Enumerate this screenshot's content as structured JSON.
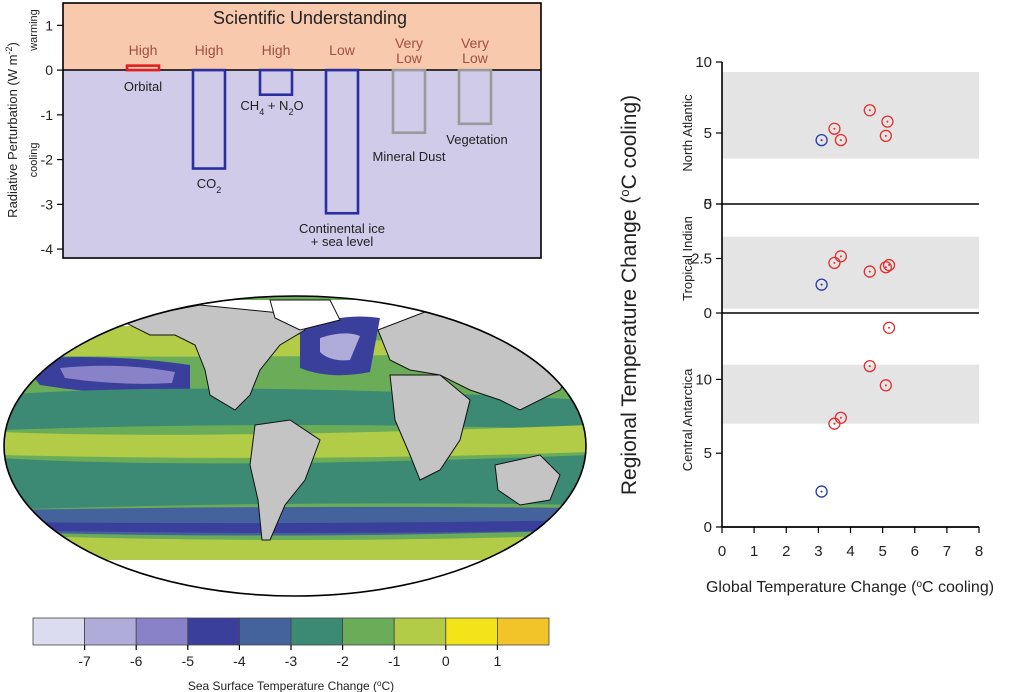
{
  "colors": {
    "warming_bg": "#f9c9ae",
    "cooling_bg": "#cfcbe8",
    "blue_bar": "#2b2f9e",
    "gray_bar": "#9a9a9a",
    "red_bar": "#e02020",
    "band_gray": "#e4e4e4",
    "point_red": "#e03030",
    "point_blue": "#2a3aa0",
    "land": "#c4c4c4"
  },
  "forcing": {
    "header": "Scientific Understanding",
    "ylabel_main": "Radiative Perturbation (W m",
    "ylabel_sup": "-2",
    "ylabel_end": ")",
    "warming_label": "warming",
    "cooling_label": "cooling"
  },
  "sst_map": {
    "colorbar_title": "Sea Surface Temperature Change (",
    "colorbar_title_sup": "o",
    "colorbar_title_end": "C)",
    "colorbar_ticks": [
      "-7",
      "-6",
      "-5",
      "-4",
      "-3",
      "-2",
      "-1",
      "0",
      "1"
    ],
    "colorbar_colors": [
      "#dcdcf0",
      "#b0acda",
      "#8a82c8",
      "#3a3f9c",
      "#44639c",
      "#3c8a74",
      "#6aac58",
      "#b2cc48",
      "#f2e418",
      "#f2c42a"
    ]
  },
  "scatter": {
    "xlabel": "Global Temperature Change (",
    "xlabel_sup": "o",
    "xlabel_end": "C cooling)",
    "ylabel": "Regional Temperature Change (",
    "ylabel_sup": "o",
    "ylabel_end": "C cooling)"
  },
  "chart_data": [
    {
      "type": "bar",
      "ylim": [
        -4.2,
        1.5
      ],
      "yticks": [
        -4,
        -3,
        -2,
        -1,
        0,
        1
      ],
      "bars": [
        {
          "label": "Orbital",
          "value": 0.1,
          "understanding": "High",
          "color": "red"
        },
        {
          "label": "CO2",
          "value": -2.2,
          "understanding": "High",
          "color": "blue"
        },
        {
          "label": "CH4 + N2O",
          "value": -0.55,
          "understanding": "High",
          "color": "blue"
        },
        {
          "label": "Continental ice + sea level",
          "value": -3.2,
          "understanding": "Low",
          "color": "blue"
        },
        {
          "label": "Mineral Dust",
          "value": -1.4,
          "understanding": "Very Low",
          "color": "gray"
        },
        {
          "label": "Vegetation",
          "value": -1.2,
          "understanding": "Very Low",
          "color": "gray"
        }
      ]
    },
    {
      "type": "scatter",
      "xlim": [
        0,
        8
      ],
      "xticks": [
        0,
        1,
        2,
        3,
        4,
        5,
        6,
        7,
        8
      ],
      "panels": [
        {
          "name": "North Atlantic",
          "ylim": [
            0,
            10
          ],
          "yticks": [
            0,
            5,
            10
          ],
          "band": [
            3.2,
            9.3
          ],
          "points": [
            {
              "x": 3.1,
              "y": 4.5,
              "color": "blue"
            },
            {
              "x": 3.5,
              "y": 5.3,
              "color": "red"
            },
            {
              "x": 3.7,
              "y": 4.5,
              "color": "red"
            },
            {
              "x": 4.6,
              "y": 6.6,
              "color": "red"
            },
            {
              "x": 5.15,
              "y": 5.8,
              "color": "red"
            },
            {
              "x": 5.1,
              "y": 4.8,
              "color": "red"
            }
          ]
        },
        {
          "name": "Tropical Indian",
          "ylim": [
            0,
            5
          ],
          "yticks": [
            0,
            2.5,
            5
          ],
          "band": [
            0.2,
            3.5
          ],
          "points": [
            {
              "x": 3.1,
              "y": 1.3,
              "color": "blue"
            },
            {
              "x": 3.5,
              "y": 2.3,
              "color": "red"
            },
            {
              "x": 3.7,
              "y": 2.6,
              "color": "red"
            },
            {
              "x": 4.6,
              "y": 1.9,
              "color": "red"
            },
            {
              "x": 5.1,
              "y": 2.1,
              "color": "red"
            },
            {
              "x": 5.2,
              "y": 2.2,
              "color": "red"
            }
          ]
        },
        {
          "name": "Central Antarctica",
          "ylim": [
            0,
            14.5
          ],
          "yticks": [
            0,
            5,
            10
          ],
          "band": [
            7,
            11
          ],
          "points": [
            {
              "x": 3.1,
              "y": 2.4,
              "color": "blue"
            },
            {
              "x": 3.5,
              "y": 7.0,
              "color": "red"
            },
            {
              "x": 3.7,
              "y": 7.4,
              "color": "red"
            },
            {
              "x": 4.6,
              "y": 10.9,
              "color": "red"
            },
            {
              "x": 5.1,
              "y": 9.6,
              "color": "red"
            },
            {
              "x": 5.2,
              "y": 13.5,
              "color": "red"
            }
          ]
        }
      ]
    }
  ]
}
